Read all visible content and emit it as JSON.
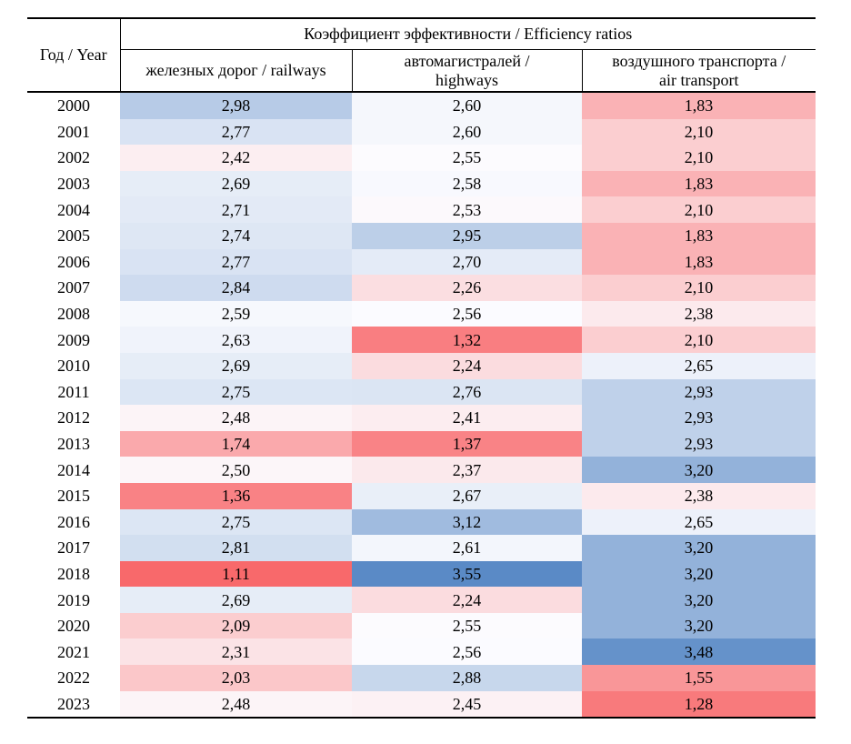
{
  "table": {
    "row_header": "Год / Year",
    "group_header": "Коэффициент эффективности / Efficiency ratios",
    "columns": [
      "железных дорог / railways",
      "автомагистралей /\nhighways",
      "воздушного транспорта /\nair transport"
    ]
  },
  "chart_data": {
    "type": "heatmap",
    "title": "Коэффициент эффективности / Efficiency ratios",
    "row_label": "Год / Year",
    "number_format": "two decimals, comma separator",
    "categories": [
      "2000",
      "2001",
      "2002",
      "2003",
      "2004",
      "2005",
      "2006",
      "2007",
      "2008",
      "2009",
      "2010",
      "2011",
      "2012",
      "2013",
      "2014",
      "2015",
      "2016",
      "2017",
      "2018",
      "2019",
      "2020",
      "2021",
      "2022",
      "2023"
    ],
    "series": [
      {
        "name": "железных дорог / railways",
        "values": [
          2.98,
          2.77,
          2.42,
          2.69,
          2.71,
          2.74,
          2.77,
          2.84,
          2.59,
          2.63,
          2.69,
          2.75,
          2.48,
          1.74,
          2.5,
          1.36,
          2.75,
          2.81,
          1.11,
          2.69,
          2.09,
          2.31,
          2.03,
          2.48
        ]
      },
      {
        "name": "автомагистралей / highways",
        "values": [
          2.6,
          2.6,
          2.55,
          2.58,
          2.53,
          2.95,
          2.7,
          2.26,
          2.56,
          1.32,
          2.24,
          2.76,
          2.41,
          1.37,
          2.37,
          2.67,
          3.12,
          2.61,
          3.55,
          2.24,
          2.55,
          2.56,
          2.88,
          2.45
        ]
      },
      {
        "name": "воздушного транспорта / air transport",
        "values": [
          1.83,
          2.1,
          2.1,
          1.83,
          2.1,
          1.83,
          1.83,
          2.1,
          2.38,
          2.1,
          2.65,
          2.93,
          2.93,
          2.93,
          3.2,
          2.38,
          2.65,
          3.2,
          3.2,
          3.2,
          3.2,
          3.48,
          1.55,
          1.28
        ]
      }
    ],
    "color_scale": {
      "min": {
        "value": 1.11,
        "color": "#F8696B"
      },
      "mid": {
        "value": 2.555,
        "color": "#FCFCFF"
      },
      "max": {
        "value": 3.55,
        "color": "#5A8AC6"
      }
    }
  }
}
